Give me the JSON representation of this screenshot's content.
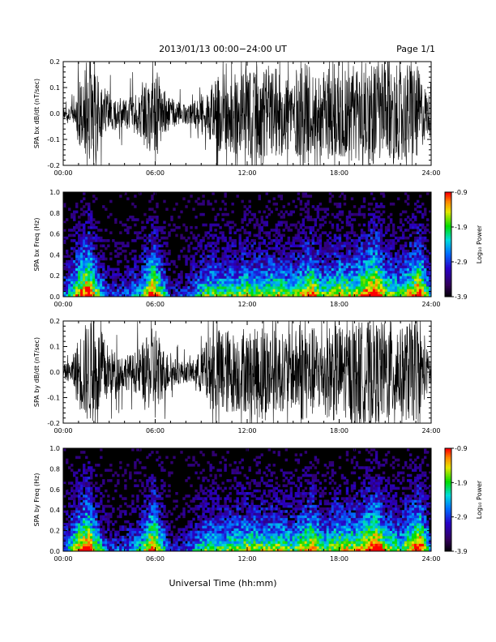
{
  "header": {
    "title": "2013/01/13  00:00−24:00 UT",
    "page_label": "Page 1/1"
  },
  "footer": {
    "xlabel": "Universal Time (hh:mm)"
  },
  "colorbar": {
    "label": "Log₁₀ Power",
    "ticks": [
      "-0.9",
      "-1.9",
      "-2.9",
      "-3.9"
    ],
    "range": [
      -3.9,
      -0.9
    ]
  },
  "chart_data": [
    {
      "type": "line",
      "ylabel": "SPA bx dB/dt (nT/sec)",
      "ylim": [
        -0.2,
        0.2
      ],
      "yticks": [
        "0.2",
        "0.1",
        "0.0",
        "-0.1",
        "-0.2"
      ],
      "xlim": [
        "00:00",
        "24:00"
      ],
      "xticks": [
        "00:00",
        "06:00",
        "12:00",
        "18:00",
        "24:00"
      ],
      "envelope": {
        "hours": [
          0,
          0.5,
          1,
          1.5,
          2,
          2.5,
          3,
          3.5,
          4,
          4.5,
          5,
          5.5,
          6,
          6.5,
          7,
          7.5,
          8,
          8.5,
          9,
          9.5,
          10,
          10.5,
          11,
          11.5,
          12,
          12.5,
          13,
          13.5,
          14,
          14.5,
          15,
          15.5,
          16,
          16.5,
          17,
          17.5,
          18,
          18.5,
          19,
          19.5,
          20,
          20.5,
          21,
          21.5,
          22,
          22.5,
          23,
          23.5,
          24
        ],
        "amplitude": [
          0.02,
          0.04,
          0.12,
          0.2,
          0.2,
          0.12,
          0.08,
          0.06,
          0.06,
          0.07,
          0.12,
          0.14,
          0.19,
          0.1,
          0.06,
          0.05,
          0.04,
          0.05,
          0.08,
          0.1,
          0.14,
          0.16,
          0.15,
          0.16,
          0.17,
          0.17,
          0.2,
          0.18,
          0.17,
          0.16,
          0.15,
          0.2,
          0.19,
          0.17,
          0.16,
          0.2,
          0.19,
          0.18,
          0.2,
          0.2,
          0.2,
          0.2,
          0.2,
          0.2,
          0.17,
          0.2,
          0.2,
          0.12,
          0.06
        ]
      }
    },
    {
      "type": "heatmap",
      "ylabel": "SPA bx Freq (Hz)",
      "ylim": [
        0.0,
        1.0
      ],
      "yticks": [
        "1.0",
        "0.8",
        "0.6",
        "0.4",
        "0.2",
        "0.0"
      ],
      "xlim": [
        "00:00",
        "24:00"
      ],
      "xticks": [
        "00:00",
        "06:00",
        "12:00",
        "18:00",
        "24:00"
      ],
      "zlabel": "Log₁₀ Power",
      "zlim": [
        -3.9,
        -0.9
      ],
      "hours": [
        0,
        1,
        1.7,
        2,
        3,
        4,
        5,
        5.9,
        7,
        8,
        9,
        9.5,
        10.5,
        12,
        13,
        14,
        15,
        16.2,
        17,
        18,
        19,
        20.4,
        21,
        22,
        23.3,
        24
      ],
      "activity": [
        0.35,
        0.8,
        1.0,
        0.75,
        0.3,
        0.35,
        0.5,
        0.95,
        0.25,
        0.3,
        0.55,
        0.65,
        0.6,
        0.7,
        0.65,
        0.7,
        0.6,
        0.85,
        0.6,
        0.75,
        0.7,
        1.0,
        0.7,
        0.6,
        0.95,
        0.4
      ]
    },
    {
      "type": "line",
      "ylabel": "SPA by dB/dt (nT/sec)",
      "ylim": [
        -0.2,
        0.2
      ],
      "yticks": [
        "0.2",
        "0.1",
        "0.0",
        "-0.1",
        "-0.2"
      ],
      "xlim": [
        "00:00",
        "24:00"
      ],
      "xticks": [
        "00:00",
        "06:00",
        "12:00",
        "18:00",
        "24:00"
      ],
      "envelope": {
        "hours": [
          0,
          0.5,
          1,
          1.5,
          2,
          2.5,
          3,
          3.5,
          4,
          4.5,
          5,
          5.5,
          6,
          6.5,
          7,
          7.5,
          8,
          8.5,
          9,
          9.5,
          10,
          10.5,
          11,
          11.5,
          12,
          12.5,
          13,
          13.5,
          14,
          14.5,
          15,
          15.5,
          16,
          16.5,
          17,
          17.5,
          18,
          18.5,
          19,
          19.5,
          20,
          20.5,
          21,
          21.5,
          22,
          22.5,
          23,
          23.5,
          24
        ],
        "amplitude": [
          0.03,
          0.04,
          0.14,
          0.2,
          0.2,
          0.16,
          0.1,
          0.08,
          0.07,
          0.07,
          0.1,
          0.14,
          0.2,
          0.1,
          0.06,
          0.05,
          0.04,
          0.05,
          0.09,
          0.14,
          0.17,
          0.18,
          0.16,
          0.16,
          0.16,
          0.17,
          0.2,
          0.18,
          0.16,
          0.15,
          0.15,
          0.2,
          0.19,
          0.17,
          0.16,
          0.2,
          0.19,
          0.18,
          0.2,
          0.2,
          0.2,
          0.2,
          0.2,
          0.2,
          0.17,
          0.2,
          0.2,
          0.12,
          0.06
        ]
      }
    },
    {
      "type": "heatmap",
      "ylabel": "SPA by Freq (Hz)",
      "ylim": [
        0.0,
        1.0
      ],
      "yticks": [
        "1.0",
        "0.8",
        "0.6",
        "0.4",
        "0.2",
        "0.0"
      ],
      "xlim": [
        "00:00",
        "24:00"
      ],
      "xticks": [
        "00:00",
        "06:00",
        "12:00",
        "18:00",
        "24:00"
      ],
      "zlabel": "Log₁₀ Power",
      "zlim": [
        -3.9,
        -0.9
      ],
      "hours": [
        0,
        1,
        1.7,
        2,
        3,
        4,
        5,
        5.9,
        7,
        8,
        9,
        9.5,
        10.5,
        12,
        13,
        14,
        15,
        16.2,
        17,
        18,
        19,
        20.4,
        21,
        22,
        23.3,
        24
      ],
      "activity": [
        0.35,
        0.8,
        1.0,
        0.75,
        0.3,
        0.35,
        0.5,
        0.95,
        0.25,
        0.3,
        0.55,
        0.65,
        0.6,
        0.7,
        0.65,
        0.7,
        0.6,
        0.85,
        0.6,
        0.75,
        0.7,
        1.0,
        0.7,
        0.6,
        0.95,
        0.4
      ]
    }
  ]
}
